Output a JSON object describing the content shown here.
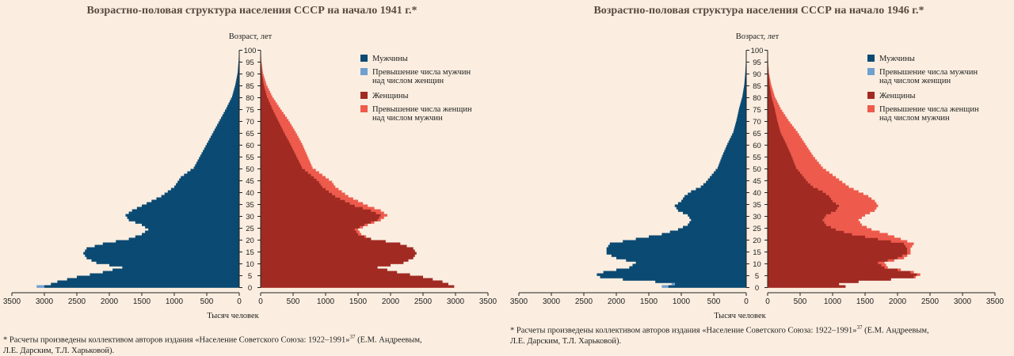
{
  "colors": {
    "men": "#0b4a73",
    "men_excess": "#6fa0d0",
    "women": "#a12a22",
    "women_excess": "#ee5a4c",
    "axis": "#222222",
    "background": "#fbeee0"
  },
  "chart_data": [
    {
      "type": "population-pyramid",
      "title": "Возрастно-половая структура населения СССР на начало 1941 г.*",
      "ylabel": "Возраст, лет",
      "xlabel": "Тысяч человек",
      "age_ticks": [
        "0",
        "5",
        "10",
        "15",
        "20",
        "25",
        "30",
        "35",
        "40",
        "45",
        "50",
        "55",
        "60",
        "65",
        "70",
        "75",
        "80",
        "85",
        "90",
        "95",
        "100"
      ],
      "x_ticks_left": [
        "3500",
        "3000",
        "2500",
        "2000",
        "1500",
        "1000",
        "500",
        "0"
      ],
      "x_ticks_right": [
        "0",
        "500",
        "1000",
        "1500",
        "2000",
        "2500",
        "3000",
        "3500"
      ],
      "x_range": [
        0,
        3500
      ],
      "age_range": [
        0,
        100
      ],
      "legend": [
        {
          "key": "men",
          "label": "Мужчины"
        },
        {
          "key": "men_excess",
          "label": "Превышение числа мужчин над числом женщин"
        },
        {
          "key": "women",
          "label": "Женщины"
        },
        {
          "key": "women_excess",
          "label": "Превышение числа женщин над числом мужчин"
        }
      ],
      "men_profile": [
        [
          0,
          3000
        ],
        [
          2,
          2800
        ],
        [
          4,
          2500
        ],
        [
          6,
          2100
        ],
        [
          8,
          1800
        ],
        [
          10,
          2200
        ],
        [
          12,
          2350
        ],
        [
          14,
          2400
        ],
        [
          16,
          2350
        ],
        [
          18,
          2100
        ],
        [
          20,
          1700
        ],
        [
          22,
          1500
        ],
        [
          24,
          1400
        ],
        [
          26,
          1500
        ],
        [
          28,
          1700
        ],
        [
          30,
          1750
        ],
        [
          32,
          1650
        ],
        [
          34,
          1500
        ],
        [
          36,
          1350
        ],
        [
          38,
          1200
        ],
        [
          40,
          1100
        ],
        [
          42,
          1000
        ],
        [
          44,
          950
        ],
        [
          46,
          900
        ],
        [
          48,
          800
        ],
        [
          50,
          700
        ],
        [
          55,
          600
        ],
        [
          60,
          500
        ],
        [
          65,
          400
        ],
        [
          70,
          300
        ],
        [
          75,
          200
        ],
        [
          80,
          110
        ],
        [
          85,
          60
        ],
        [
          90,
          25
        ],
        [
          95,
          10
        ],
        [
          99,
          3
        ]
      ],
      "women_profile": [
        [
          0,
          2980
        ],
        [
          2,
          2800
        ],
        [
          4,
          2500
        ],
        [
          6,
          2100
        ],
        [
          8,
          1800
        ],
        [
          10,
          2200
        ],
        [
          12,
          2350
        ],
        [
          14,
          2400
        ],
        [
          16,
          2350
        ],
        [
          18,
          2150
        ],
        [
          20,
          1700
        ],
        [
          22,
          1500
        ],
        [
          24,
          1450
        ],
        [
          26,
          1600
        ],
        [
          28,
          1800
        ],
        [
          30,
          1850
        ],
        [
          32,
          1700
        ],
        [
          34,
          1450
        ],
        [
          36,
          1300
        ],
        [
          38,
          1150
        ],
        [
          40,
          1050
        ],
        [
          42,
          950
        ],
        [
          44,
          900
        ],
        [
          46,
          820
        ],
        [
          48,
          730
        ],
        [
          50,
          640
        ],
        [
          55,
          550
        ],
        [
          60,
          460
        ],
        [
          65,
          360
        ],
        [
          70,
          270
        ],
        [
          75,
          180
        ],
        [
          80,
          100
        ],
        [
          85,
          50
        ],
        [
          90,
          20
        ],
        [
          95,
          8
        ],
        [
          99,
          2
        ]
      ],
      "women_total_profile": [
        [
          0,
          2980
        ],
        [
          2,
          2800
        ],
        [
          4,
          2500
        ],
        [
          6,
          2100
        ],
        [
          8,
          1800
        ],
        [
          10,
          2200
        ],
        [
          12,
          2350
        ],
        [
          14,
          2400
        ],
        [
          16,
          2350
        ],
        [
          18,
          2150
        ],
        [
          20,
          1700
        ],
        [
          22,
          1550
        ],
        [
          24,
          1500
        ],
        [
          26,
          1650
        ],
        [
          28,
          1850
        ],
        [
          30,
          1950
        ],
        [
          32,
          1850
        ],
        [
          34,
          1650
        ],
        [
          36,
          1500
        ],
        [
          38,
          1350
        ],
        [
          40,
          1250
        ],
        [
          42,
          1150
        ],
        [
          44,
          1100
        ],
        [
          46,
          1000
        ],
        [
          48,
          900
        ],
        [
          50,
          800
        ],
        [
          55,
          720
        ],
        [
          60,
          640
        ],
        [
          65,
          540
        ],
        [
          70,
          430
        ],
        [
          75,
          300
        ],
        [
          80,
          180
        ],
        [
          85,
          90
        ],
        [
          90,
          35
        ],
        [
          95,
          12
        ],
        [
          99,
          3
        ]
      ],
      "men_excess_profile": [
        [
          0,
          3120
        ],
        [
          2,
          2800
        ],
        [
          4,
          2500
        ]
      ]
    },
    {
      "type": "population-pyramid",
      "title": "Возрастно-половая структура населения СССР на начало 1946 г.*",
      "ylabel": "Возраст, лет",
      "xlabel": "Тысяч человек",
      "age_ticks": [
        "0",
        "5",
        "10",
        "15",
        "20",
        "25",
        "30",
        "35",
        "40",
        "45",
        "50",
        "55",
        "60",
        "65",
        "70",
        "75",
        "80",
        "85",
        "90",
        "95",
        "100"
      ],
      "x_ticks_left": [
        "3500",
        "3000",
        "2500",
        "2000",
        "1500",
        "1000",
        "500",
        "0"
      ],
      "x_ticks_right": [
        "0",
        "500",
        "1000",
        "1500",
        "2000",
        "2500",
        "3000",
        "3500"
      ],
      "x_range": [
        0,
        3500
      ],
      "age_range": [
        0,
        100
      ],
      "legend": [
        {
          "key": "men",
          "label": "Мужчины"
        },
        {
          "key": "men_excess",
          "label": "Превышение числа мужчин над числом женщин"
        },
        {
          "key": "women",
          "label": "Женщины"
        },
        {
          "key": "women_excess",
          "label": "Превышение числа женщин над числом мужчин"
        }
      ],
      "men_profile": [
        [
          0,
          1200
        ],
        [
          1,
          1100
        ],
        [
          2,
          1400
        ],
        [
          3,
          1900
        ],
        [
          4,
          2250
        ],
        [
          5,
          2300
        ],
        [
          6,
          2200
        ],
        [
          7,
          2000
        ],
        [
          8,
          1800
        ],
        [
          10,
          1700
        ],
        [
          12,
          2000
        ],
        [
          14,
          2150
        ],
        [
          16,
          2150
        ],
        [
          18,
          2100
        ],
        [
          20,
          1700
        ],
        [
          22,
          1300
        ],
        [
          24,
          1050
        ],
        [
          26,
          900
        ],
        [
          28,
          850
        ],
        [
          30,
          900
        ],
        [
          32,
          1050
        ],
        [
          34,
          1100
        ],
        [
          36,
          1000
        ],
        [
          38,
          950
        ],
        [
          40,
          850
        ],
        [
          42,
          700
        ],
        [
          44,
          620
        ],
        [
          46,
          560
        ],
        [
          48,
          500
        ],
        [
          50,
          440
        ],
        [
          55,
          370
        ],
        [
          60,
          290
        ],
        [
          65,
          200
        ],
        [
          70,
          150
        ],
        [
          75,
          110
        ],
        [
          80,
          60
        ],
        [
          85,
          30
        ],
        [
          90,
          15
        ],
        [
          95,
          5
        ],
        [
          99,
          2
        ]
      ],
      "women_profile": [
        [
          0,
          1200
        ],
        [
          1,
          1100
        ],
        [
          2,
          1400
        ],
        [
          3,
          1900
        ],
        [
          4,
          2250
        ],
        [
          5,
          2300
        ],
        [
          6,
          2200
        ],
        [
          7,
          2000
        ],
        [
          8,
          1800
        ],
        [
          10,
          1700
        ],
        [
          12,
          2000
        ],
        [
          14,
          2150
        ],
        [
          16,
          2150
        ],
        [
          18,
          2100
        ],
        [
          20,
          1700
        ],
        [
          22,
          1300
        ],
        [
          24,
          1050
        ],
        [
          26,
          900
        ],
        [
          28,
          850
        ],
        [
          30,
          900
        ],
        [
          32,
          1050
        ],
        [
          34,
          1100
        ],
        [
          36,
          1000
        ],
        [
          38,
          950
        ],
        [
          40,
          850
        ],
        [
          42,
          700
        ],
        [
          44,
          620
        ],
        [
          46,
          560
        ],
        [
          48,
          500
        ],
        [
          50,
          440
        ],
        [
          55,
          370
        ],
        [
          60,
          290
        ],
        [
          65,
          200
        ],
        [
          70,
          150
        ],
        [
          75,
          110
        ],
        [
          80,
          60
        ],
        [
          85,
          30
        ],
        [
          90,
          15
        ],
        [
          95,
          5
        ],
        [
          99,
          2
        ]
      ],
      "women_total_profile": [
        [
          0,
          1200
        ],
        [
          1,
          1100
        ],
        [
          2,
          1400
        ],
        [
          3,
          1900
        ],
        [
          4,
          2280
        ],
        [
          5,
          2350
        ],
        [
          6,
          2250
        ],
        [
          7,
          2050
        ],
        [
          8,
          1850
        ],
        [
          10,
          1800
        ],
        [
          12,
          2100
        ],
        [
          14,
          2200
        ],
        [
          16,
          2200
        ],
        [
          18,
          2250
        ],
        [
          20,
          2050
        ],
        [
          22,
          1850
        ],
        [
          24,
          1600
        ],
        [
          26,
          1450
        ],
        [
          28,
          1400
        ],
        [
          30,
          1500
        ],
        [
          32,
          1650
        ],
        [
          34,
          1700
        ],
        [
          36,
          1650
        ],
        [
          38,
          1550
        ],
        [
          40,
          1400
        ],
        [
          42,
          1250
        ],
        [
          44,
          1150
        ],
        [
          46,
          1050
        ],
        [
          48,
          950
        ],
        [
          50,
          850
        ],
        [
          55,
          700
        ],
        [
          60,
          580
        ],
        [
          65,
          460
        ],
        [
          70,
          320
        ],
        [
          75,
          200
        ],
        [
          80,
          110
        ],
        [
          85,
          55
        ],
        [
          90,
          20
        ],
        [
          95,
          8
        ],
        [
          99,
          3
        ]
      ],
      "men_excess_profile": [
        [
          0,
          1300
        ],
        [
          1,
          1150
        ],
        [
          2,
          1400
        ]
      ]
    }
  ],
  "footnotes": [
    {
      "line1": "* Расчеты произведены коллективом авторов издания «Население Советского Союза: 1922–1991»",
      "sup": "37",
      "line1_tail": " (Е.М. Андреевым,",
      "line2": "Л.Е. Дарским, Т.Л. Харьковой)."
    },
    {
      "line1": "* Расчеты произведены коллективом авторов издания «Население Советского Союза: 1922–1991»",
      "sup": "37",
      "line1_tail": " (Е.М. Андреевым,",
      "line2": "Л.Е. Дарским, Т.Л. Харьковой)."
    }
  ]
}
